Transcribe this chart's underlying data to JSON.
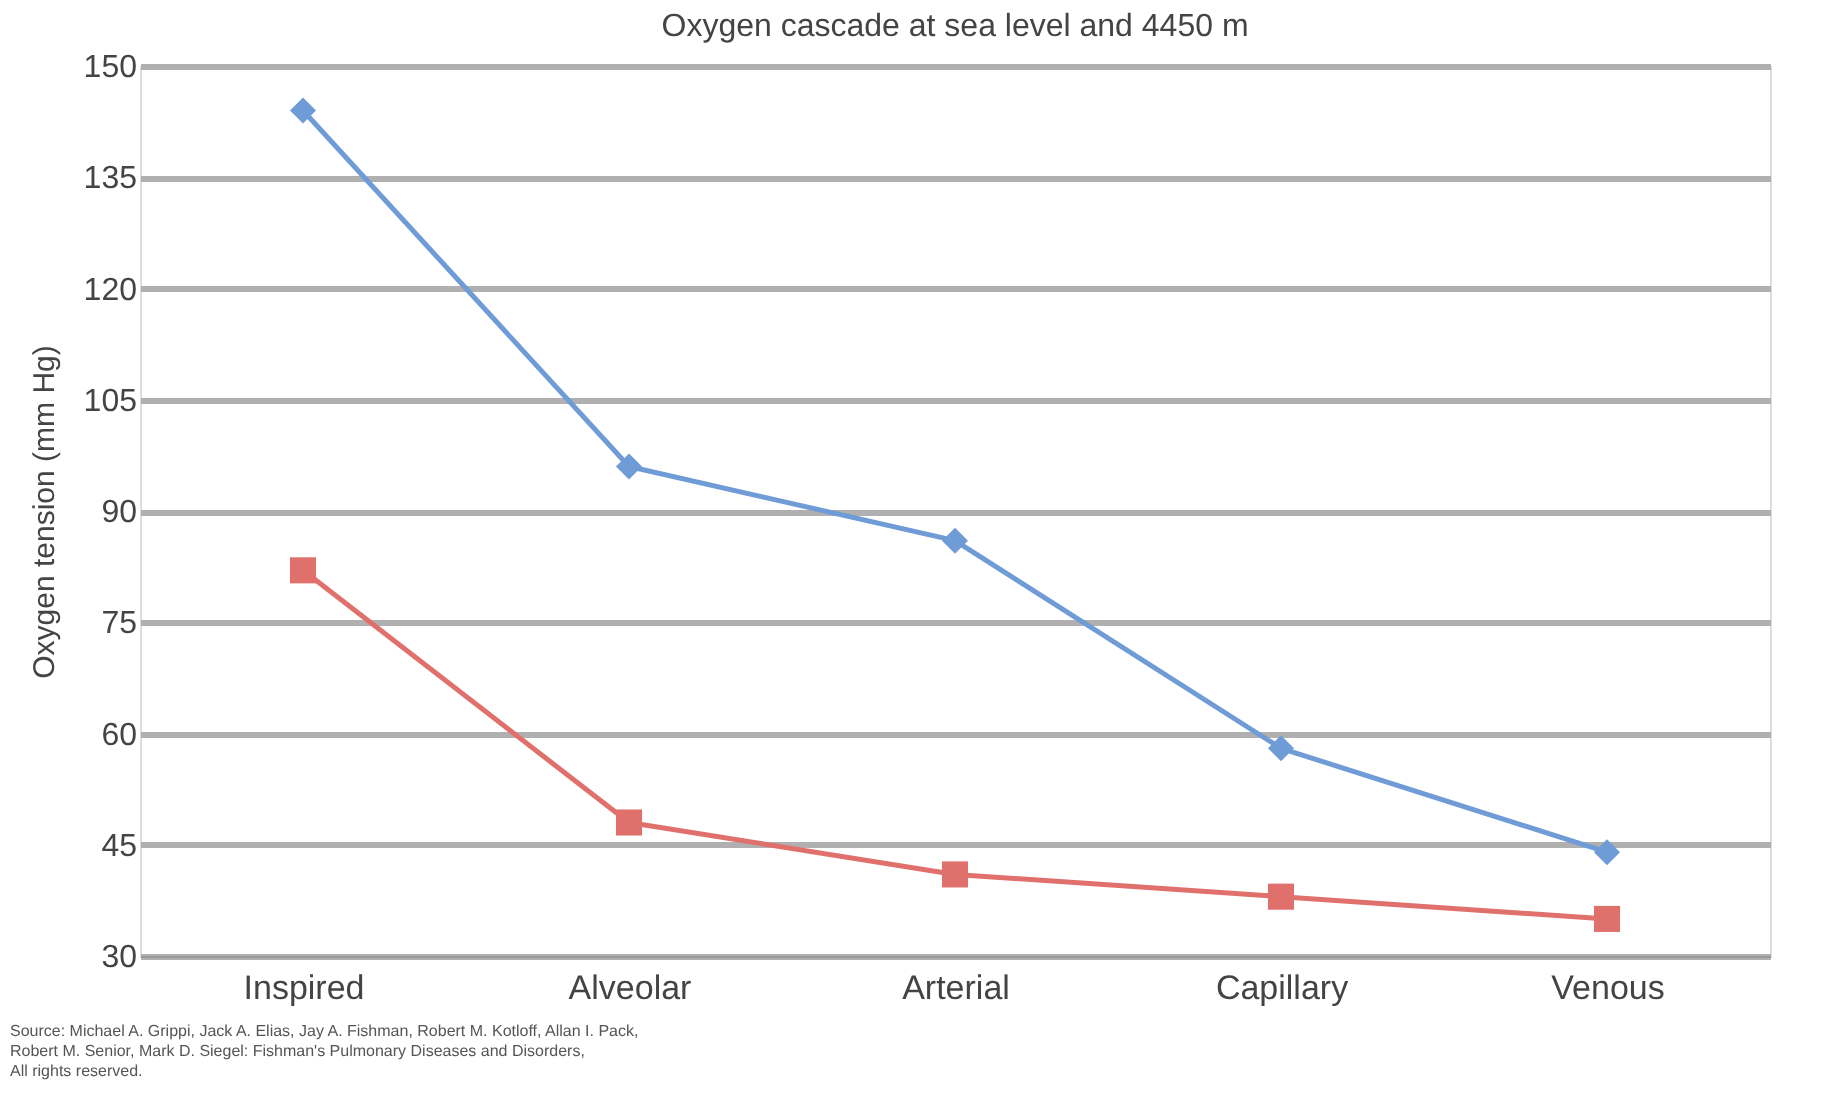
{
  "chart_data": {
    "type": "line",
    "title": "Oxygen cascade at sea level and 4450 m",
    "ylabel": "Oxygen tension (mm Hg)",
    "categories": [
      "Inspired",
      "Alveolar",
      "Arterial",
      "Capillary",
      "Venous"
    ],
    "series": [
      {
        "color": "#6f9bd6",
        "values": [
          144,
          96,
          86,
          58,
          44
        ],
        "marker": "diamond"
      },
      {
        "color": "#e0706c",
        "values": [
          82,
          48,
          41,
          38,
          35
        ],
        "marker": "square"
      }
    ],
    "ylim": [
      30,
      150
    ],
    "yticks": [
      30,
      45,
      60,
      75,
      90,
      105,
      120,
      135,
      150
    ],
    "grid": "y",
    "line_style": "solid",
    "annotations": [
      "Source: Michael A. Grippi, Jack A. Elias, Jay A. Fishman, Robert M. Kotloff, Allan I. Pack,",
      "Robert M. Senior, Mark D. Siegel: Fishman's Pulmonary Diseases and Disorders,",
      "All rights reserved."
    ]
  }
}
